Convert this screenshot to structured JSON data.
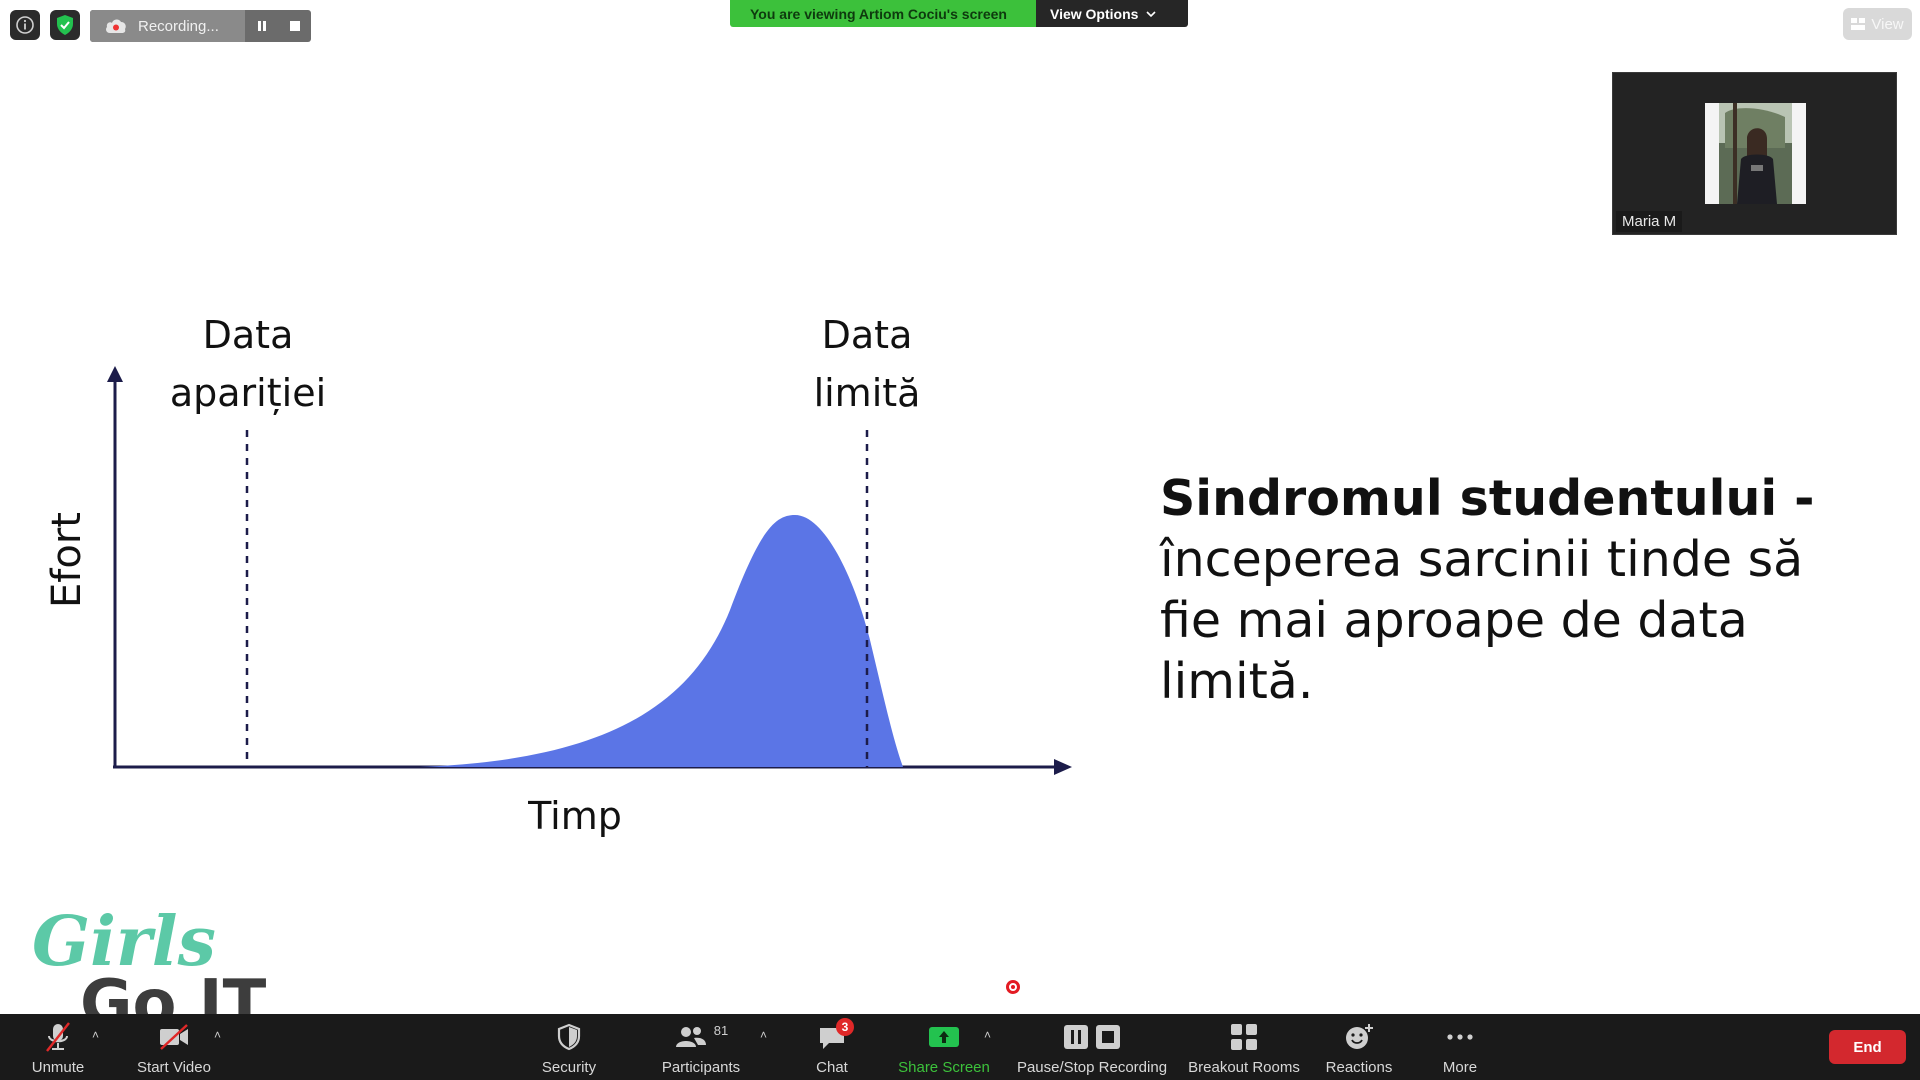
{
  "recording": {
    "label": "Recording..."
  },
  "banner": {
    "viewing_text": "You are viewing Artiom Cociu's screen",
    "options_label": "View Options"
  },
  "view_button": {
    "label": "View"
  },
  "participant": {
    "name": "Maria M"
  },
  "slide": {
    "y_axis_label": "Efort",
    "x_axis_label": "Timp",
    "marker_start_line1": "Data",
    "marker_start_line2": "apariției",
    "marker_end_line1": "Data",
    "marker_end_line2": "limită",
    "title_bold": "Sindromul studentului -",
    "line1": "începerea sarcinii tinde să",
    "line2": "fie mai aproape de data",
    "line3": "limită.",
    "fill_color": "#5b75e6"
  },
  "logo": {
    "word1": "Girls",
    "word2": "Go IT",
    "color1": "#5cc9a7",
    "color2": "#3d3d3d"
  },
  "toolbar": {
    "unmute": "Unmute",
    "start_video": "Start Video",
    "security": "Security",
    "participants": "Participants",
    "participants_count": "81",
    "chat": "Chat",
    "chat_badge": "3",
    "share_screen": "Share Screen",
    "pause_stop": "Pause/Stop Recording",
    "breakout": "Breakout Rooms",
    "reactions": "Reactions",
    "more": "More",
    "end": "End"
  }
}
